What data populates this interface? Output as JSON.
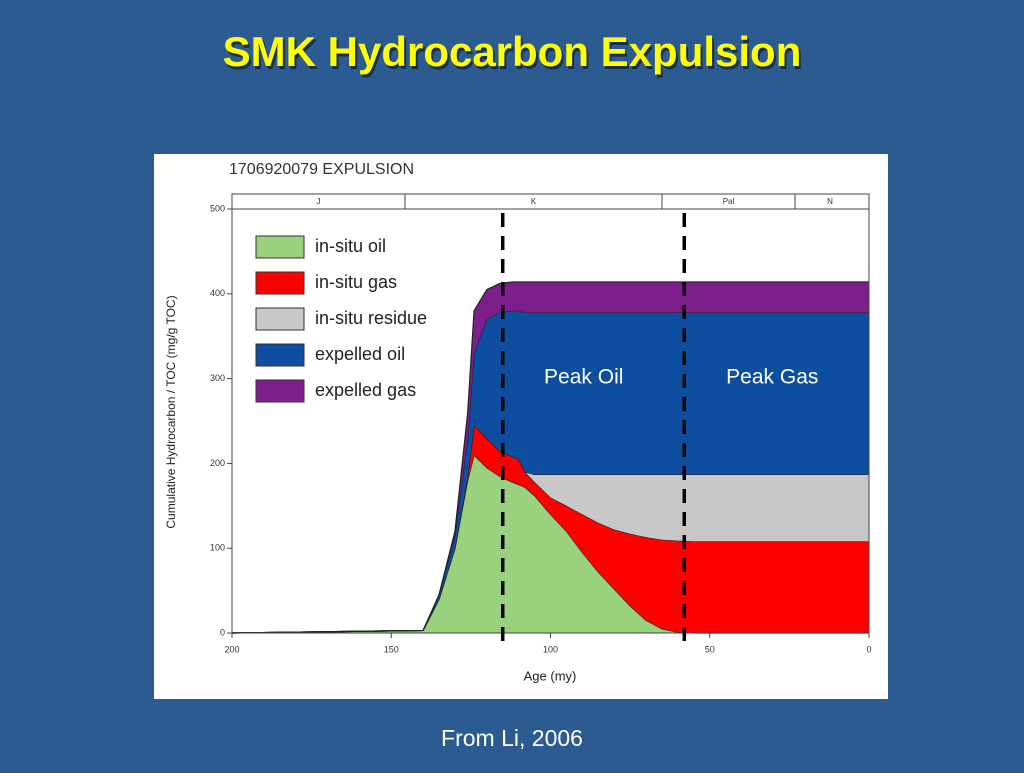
{
  "slide_title": "SMK Hydrocarbon Expulsion",
  "source": "From Li, 2006",
  "chart_data": {
    "type": "stacked_area",
    "title": "1706920079 EXPULSION",
    "x_label": "Age (my)",
    "y_label": "Cumulative Hydrocarbon / TOC (mg/g TOC)",
    "eras": [
      "J",
      "K",
      "Pal",
      "N"
    ],
    "x": [
      200,
      140,
      135,
      130,
      126,
      124,
      120,
      116,
      112,
      110,
      108,
      105,
      100,
      95,
      90,
      85,
      80,
      75,
      70,
      65,
      60,
      55,
      0
    ],
    "series": [
      {
        "name": "in-situ oil",
        "color": "#99d17f",
        "values": [
          0,
          3,
          40,
          100,
          180,
          210,
          195,
          185,
          178,
          175,
          172,
          162,
          140,
          120,
          95,
          72,
          52,
          32,
          15,
          5,
          1,
          0,
          0
        ]
      },
      {
        "name": "in-situ gas",
        "color": "#ff0000",
        "values": [
          0,
          0,
          0,
          0,
          5,
          35,
          35,
          30,
          30,
          30,
          18,
          16,
          20,
          30,
          45,
          58,
          70,
          85,
          98,
          105,
          108,
          108,
          108
        ]
      },
      {
        "name": "in-situ residue",
        "color": "#c8c8c8",
        "values": [
          0,
          0,
          0,
          0,
          0,
          0,
          0,
          0,
          0,
          0,
          0,
          9,
          27,
          37,
          47,
          57,
          65,
          70,
          74,
          77,
          78,
          79,
          79
        ]
      },
      {
        "name": "expelled oil",
        "color": "#0d4ea1",
        "values": [
          0,
          0,
          5,
          15,
          45,
          85,
          140,
          163,
          172,
          175,
          188,
          191,
          191,
          191,
          191,
          191,
          191,
          191,
          191,
          191,
          191,
          191,
          191
        ]
      },
      {
        "name": "expelled gas",
        "color": "#7c1f8a",
        "values": [
          0,
          0,
          0,
          5,
          30,
          50,
          35,
          34,
          34,
          34,
          36,
          36,
          36,
          36,
          36,
          36,
          36,
          36,
          36,
          36,
          36,
          36,
          36
        ]
      }
    ],
    "markers": [
      {
        "x": 115,
        "label": "Peak Oil"
      },
      {
        "x": 58,
        "label": "Peak Gas"
      }
    ],
    "xlim": [
      200,
      0
    ],
    "xticks": [
      200,
      150,
      100,
      50,
      0
    ],
    "ylim": [
      0,
      500
    ],
    "yticks": [
      0,
      100,
      200,
      300,
      400,
      500
    ]
  }
}
